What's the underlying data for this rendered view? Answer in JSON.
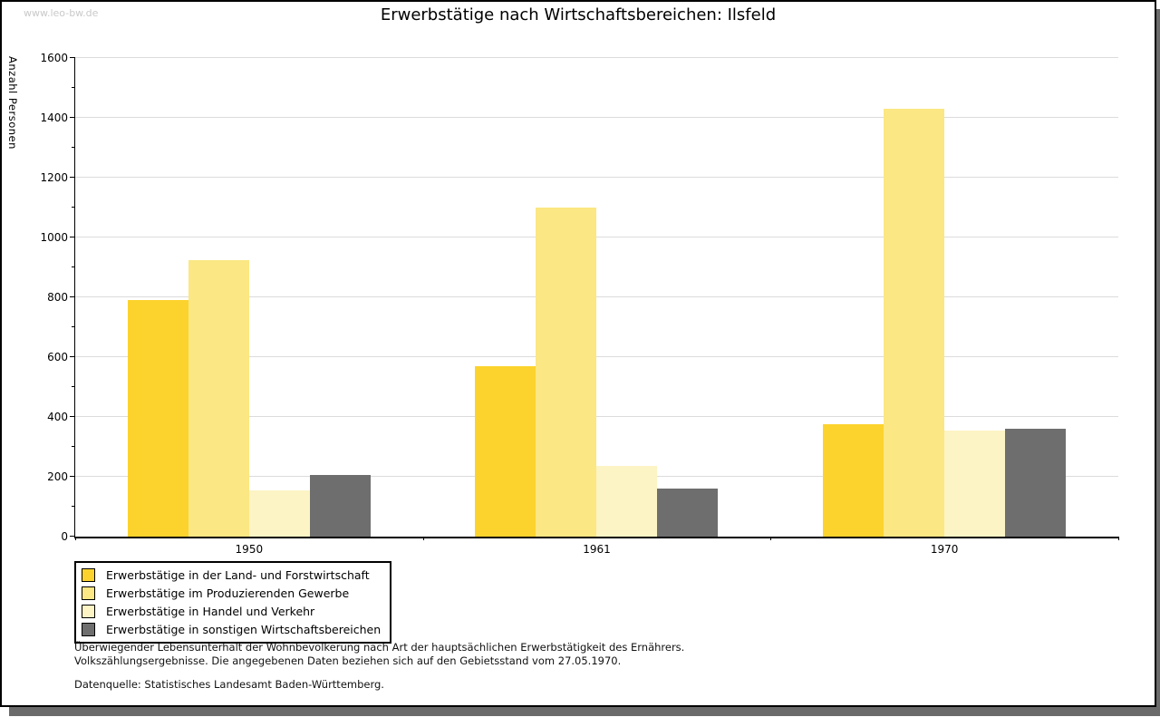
{
  "watermark": "www.leo-bw.de",
  "title": "Erwerbstätige nach Wirtschaftsbereichen: Ilsfeld",
  "chart_data": {
    "type": "bar",
    "title": "Erwerbstätige nach Wirtschaftsbereichen: Ilsfeld",
    "xlabel": "",
    "ylabel": "Anzahl Personen",
    "categories": [
      "1950",
      "1961",
      "1970"
    ],
    "series": [
      {
        "name": "Erwerbstätige in der Land- und Forstwirtschaft",
        "color": "#fcd32d",
        "values": [
          790,
          570,
          375
        ]
      },
      {
        "name": "Erwerbstätige im Produzierenden Gewerbe",
        "color": "#fbe783",
        "values": [
          925,
          1100,
          1430
        ]
      },
      {
        "name": "Erwerbstätige in Handel und Verkehr",
        "color": "#fcf4c5",
        "values": [
          155,
          235,
          355
        ]
      },
      {
        "name": "Erwerbstätige in sonstigen Wirtschaftsbereichen",
        "color": "#6e6e6e",
        "values": [
          205,
          160,
          360
        ]
      }
    ],
    "ylim": [
      0,
      1600
    ],
    "ytick_major": 200,
    "ytick_minor": 100,
    "grid": true,
    "gridline_color": "#dcdcdc",
    "legend_position": "bottom-left"
  },
  "footnotes": {
    "line1": "Überwiegender Lebensunterhalt der Wohnbevölkerung nach Art der hauptsächlichen Erwerbstätigkeit des Ernährers.",
    "line2": "Volkszählungsergebnisse. Die angegebenen Daten beziehen sich auf den Gebietsstand vom 27.05.1970.",
    "source": "Datenquelle: Statistisches Landesamt Baden-Württemberg."
  }
}
